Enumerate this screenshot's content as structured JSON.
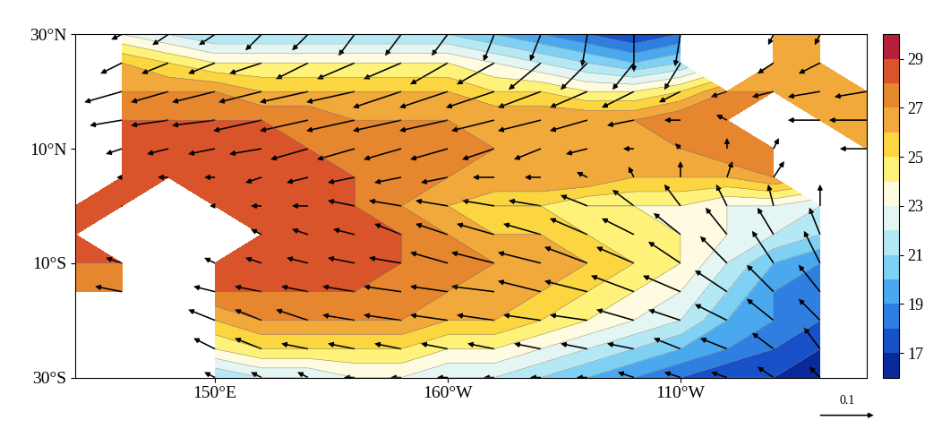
{
  "chart_data": {
    "type": "contour",
    "x": [
      120,
      130,
      140,
      150,
      160,
      170,
      180,
      190,
      200,
      210,
      220,
      230,
      240,
      250,
      260,
      270,
      280,
      290
    ],
    "y": [
      30,
      25,
      20,
      15,
      10,
      5,
      0,
      -5,
      -10,
      -15,
      -20,
      -25,
      -30
    ],
    "xlim": [
      120,
      290
    ],
    "ylim": [
      -30,
      30
    ],
    "xticks": [
      {
        "value": 150,
        "label": "150°E"
      },
      {
        "value": 200,
        "label": "160°W"
      },
      {
        "value": 250,
        "label": "110°W"
      }
    ],
    "yticks": [
      {
        "value": -30,
        "label": "30°S"
      },
      {
        "value": -10,
        "label": "10°S"
      },
      {
        "value": 10,
        "label": "10°N"
      },
      {
        "value": 30,
        "label": "30°N"
      }
    ],
    "cells": [
      [
        null,
        23,
        22,
        21,
        21,
        21,
        21,
        21,
        21,
        20,
        19,
        18,
        17,
        18,
        null,
        26,
        26,
        null
      ],
      [
        null,
        26,
        25,
        24,
        24,
        24,
        24,
        24,
        24,
        23,
        22,
        21,
        20,
        21,
        null,
        27,
        27,
        null
      ],
      [
        null,
        27,
        27,
        27,
        26,
        26,
        26,
        26,
        26,
        25,
        25,
        24,
        24,
        25,
        27,
        27,
        27,
        27
      ],
      [
        null,
        28,
        28,
        28,
        28,
        28,
        27,
        27,
        27,
        27,
        27,
        27,
        27,
        28,
        28,
        null,
        27,
        27
      ],
      [
        null,
        29,
        29,
        29,
        29,
        28,
        28,
        28,
        28,
        27,
        27,
        27,
        27,
        27,
        28,
        28,
        null,
        27
      ],
      [
        null,
        29,
        29,
        29,
        29,
        29,
        28,
        28,
        27,
        27,
        27,
        27,
        26,
        26,
        26,
        27,
        null,
        null
      ],
      [
        29,
        29,
        null,
        29,
        29,
        29,
        28,
        27,
        26,
        25,
        25,
        24,
        24,
        24,
        23,
        23,
        22,
        null
      ],
      [
        29,
        null,
        null,
        null,
        29,
        29,
        29,
        28,
        27,
        26,
        26,
        25,
        25,
        24,
        23,
        22,
        21,
        null
      ],
      [
        28,
        28,
        null,
        29,
        29,
        29,
        29,
        28,
        28,
        27,
        27,
        26,
        25,
        24,
        22,
        20,
        19,
        null
      ],
      [
        27,
        28,
        null,
        28,
        28,
        28,
        28,
        28,
        27,
        27,
        26,
        25,
        24,
        23,
        21,
        19,
        18,
        null
      ],
      [
        null,
        null,
        null,
        26,
        27,
        27,
        27,
        27,
        26,
        26,
        25,
        24,
        23,
        22,
        20,
        19,
        18,
        null
      ],
      [
        null,
        null,
        null,
        24,
        25,
        25,
        25,
        25,
        24,
        24,
        23,
        22,
        21,
        20,
        19,
        18,
        17,
        null
      ],
      [
        null,
        null,
        null,
        21,
        22,
        22,
        23,
        23,
        22,
        22,
        21,
        20,
        19,
        18,
        17,
        17,
        17,
        null
      ]
    ],
    "u": [
      [
        null,
        -0.02,
        -0.03,
        -0.03,
        -0.03,
        -0.03,
        -0.03,
        -0.03,
        -0.03,
        -0.02,
        -0.02,
        -0.01,
        0,
        -0.01,
        null,
        -0.01,
        -0.01,
        null
      ],
      [
        null,
        -0.04,
        -0.05,
        -0.05,
        -0.06,
        -0.06,
        -0.07,
        -0.07,
        -0.07,
        -0.07,
        -0.06,
        -0.05,
        -0.04,
        -0.03,
        null,
        -0.03,
        -0.04,
        null
      ],
      [
        null,
        -0.07,
        -0.07,
        -0.08,
        -0.08,
        -0.09,
        -0.09,
        -0.09,
        -0.09,
        -0.09,
        -0.08,
        -0.07,
        -0.06,
        -0.04,
        -0.03,
        -0.04,
        -0.06,
        -0.06
      ],
      [
        null,
        -0.06,
        -0.07,
        -0.08,
        -0.09,
        -0.09,
        -0.09,
        -0.09,
        -0.09,
        -0.08,
        -0.08,
        -0.07,
        -0.05,
        -0.03,
        -0.02,
        null,
        -0.06,
        -0.07
      ],
      [
        null,
        -0.03,
        -0.04,
        -0.05,
        -0.06,
        -0.07,
        -0.07,
        -0.07,
        -0.07,
        -0.06,
        -0.05,
        -0.04,
        -0.02,
        -0.01,
        0,
        0.01,
        null,
        -0.05
      ],
      [
        null,
        -0.01,
        -0.02,
        -0.02,
        -0.03,
        -0.04,
        -0.05,
        -0.05,
        -0.05,
        -0.04,
        -0.03,
        -0.02,
        -0.01,
        0,
        0.01,
        0.02,
        null,
        null
      ],
      [
        0,
        0,
        null,
        -0.01,
        -0.02,
        -0.03,
        -0.05,
        -0.06,
        -0.06,
        -0.06,
        -0.06,
        -0.05,
        -0.04,
        -0.03,
        -0.02,
        -0.01,
        0,
        null
      ],
      [
        -0.01,
        null,
        null,
        null,
        -0.02,
        -0.03,
        -0.04,
        -0.05,
        -0.06,
        -0.07,
        -0.07,
        -0.07,
        -0.06,
        -0.05,
        -0.04,
        -0.03,
        -0.02,
        null
      ],
      [
        -0.03,
        -0.03,
        null,
        -0.02,
        -0.03,
        -0.04,
        -0.05,
        -0.06,
        -0.07,
        -0.08,
        -0.08,
        -0.08,
        -0.07,
        -0.06,
        -0.05,
        -0.04,
        -0.03,
        null
      ],
      [
        -0.05,
        -0.05,
        null,
        -0.04,
        -0.05,
        -0.05,
        -0.06,
        -0.07,
        -0.07,
        -0.08,
        -0.08,
        -0.08,
        -0.08,
        -0.07,
        -0.06,
        -0.05,
        -0.04,
        null
      ],
      [
        null,
        null,
        null,
        -0.05,
        -0.05,
        -0.06,
        -0.06,
        -0.07,
        -0.07,
        -0.07,
        -0.07,
        -0.07,
        -0.07,
        -0.06,
        -0.06,
        -0.05,
        -0.04,
        null
      ],
      [
        null,
        null,
        null,
        -0.04,
        -0.05,
        -0.05,
        -0.05,
        -0.05,
        -0.05,
        -0.05,
        -0.05,
        -0.05,
        -0.05,
        -0.05,
        -0.05,
        -0.04,
        -0.03,
        null
      ],
      [
        null,
        null,
        null,
        -0.02,
        -0.02,
        -0.02,
        -0.02,
        -0.02,
        -0.02,
        -0.02,
        -0.02,
        -0.02,
        -0.03,
        -0.03,
        -0.03,
        -0.03,
        -0.02,
        null
      ]
    ],
    "v": [
      [
        null,
        -0.01,
        -0.02,
        -0.02,
        -0.03,
        -0.03,
        -0.04,
        -0.04,
        -0.04,
        -0.05,
        -0.05,
        -0.06,
        -0.07,
        -0.06,
        null,
        -0.02,
        -0.02,
        null
      ],
      [
        null,
        -0.02,
        -0.02,
        -0.02,
        -0.02,
        -0.03,
        -0.03,
        -0.03,
        -0.04,
        -0.04,
        -0.05,
        -0.05,
        -0.05,
        -0.05,
        null,
        -0.02,
        -0.02,
        null
      ],
      [
        null,
        -0.02,
        -0.02,
        -0.02,
        -0.02,
        -0.02,
        -0.02,
        -0.03,
        -0.03,
        -0.03,
        -0.03,
        -0.03,
        -0.03,
        -0.02,
        -0.01,
        -0.01,
        -0.01,
        -0.01
      ],
      [
        null,
        -0.01,
        -0.01,
        -0.01,
        -0.02,
        -0.02,
        -0.02,
        -0.02,
        -0.02,
        -0.02,
        -0.02,
        -0.02,
        -0.01,
        0,
        0.01,
        null,
        0,
        0
      ],
      [
        null,
        -0.01,
        -0.01,
        -0.01,
        -0.01,
        -0.02,
        -0.02,
        -0.02,
        -0.02,
        -0.02,
        -0.02,
        -0.01,
        0,
        0.01,
        0.02,
        0.02,
        null,
        0
      ],
      [
        null,
        0,
        0,
        0,
        -0.01,
        -0.01,
        -0.01,
        -0.01,
        -0.01,
        0,
        0,
        0.01,
        0.02,
        0.03,
        0.03,
        0.03,
        null,
        null
      ],
      [
        0,
        0,
        null,
        0,
        0,
        0,
        0.01,
        0.01,
        0.01,
        0.01,
        0.01,
        0.02,
        0.03,
        0.04,
        0.04,
        0.04,
        0.04,
        null
      ],
      [
        0,
        null,
        null,
        null,
        0.01,
        0.01,
        0.01,
        0.02,
        0.02,
        0.02,
        0.02,
        0.03,
        0.03,
        0.04,
        0.05,
        0.05,
        0.05,
        null
      ],
      [
        0.01,
        0.01,
        null,
        0.01,
        0.01,
        0.01,
        0.01,
        0.01,
        0.02,
        0.02,
        0.02,
        0.03,
        0.03,
        0.04,
        0.05,
        0.06,
        0.06,
        null
      ],
      [
        0.01,
        0.01,
        null,
        0.01,
        0.01,
        0.01,
        0.01,
        0.01,
        0.01,
        0.01,
        0.02,
        0.02,
        0.03,
        0.03,
        0.04,
        0.05,
        0.05,
        null
      ],
      [
        null,
        null,
        null,
        0.02,
        0.02,
        0.02,
        0.01,
        0.01,
        0.01,
        0.01,
        0.01,
        0.01,
        0.02,
        0.02,
        0.03,
        0.04,
        0.04,
        null
      ],
      [
        null,
        null,
        null,
        0.02,
        0.02,
        0.01,
        0.01,
        0.01,
        0.01,
        0.01,
        0.01,
        0.01,
        0.01,
        0.02,
        0.02,
        0.03,
        0.04,
        null
      ],
      [
        null,
        null,
        null,
        0.01,
        0.01,
        0.01,
        0,
        0,
        0,
        0,
        0,
        0,
        0.01,
        0.01,
        0.01,
        0.02,
        0.02,
        null
      ]
    ],
    "levels": [
      16,
      17,
      18,
      19,
      20,
      21,
      22,
      23,
      24,
      25,
      26,
      27,
      28,
      29,
      30
    ],
    "colorbar_ticks": [
      17,
      19,
      21,
      23,
      25,
      27,
      29
    ],
    "reference_arrow": 0.1
  }
}
